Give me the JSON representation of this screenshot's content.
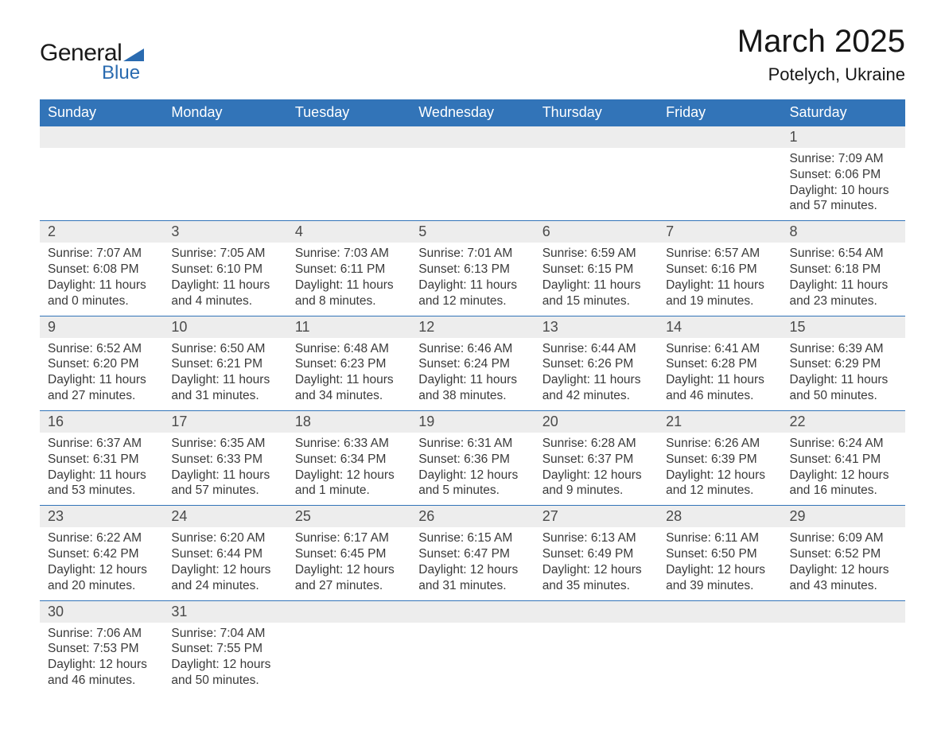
{
  "logo": {
    "word1": "General",
    "word2": "Blue",
    "shape_color": "#2a6bb0",
    "text1_color": "#1a1a1a",
    "text2_color": "#2a6bb0"
  },
  "title": "March 2025",
  "location": "Potelych, Ukraine",
  "header_bg": "#3274b8",
  "header_fg": "#ffffff",
  "daynum_bg": "#ededed",
  "border_color": "#3274b8",
  "text_color": "#3a3a3a",
  "day_headers": [
    "Sunday",
    "Monday",
    "Tuesday",
    "Wednesday",
    "Thursday",
    "Friday",
    "Saturday"
  ],
  "weeks": [
    [
      null,
      null,
      null,
      null,
      null,
      null,
      {
        "n": "1",
        "sunrise": "Sunrise: 7:09 AM",
        "sunset": "Sunset: 6:06 PM",
        "day1": "Daylight: 10 hours",
        "day2": "and 57 minutes."
      }
    ],
    [
      {
        "n": "2",
        "sunrise": "Sunrise: 7:07 AM",
        "sunset": "Sunset: 6:08 PM",
        "day1": "Daylight: 11 hours",
        "day2": "and 0 minutes."
      },
      {
        "n": "3",
        "sunrise": "Sunrise: 7:05 AM",
        "sunset": "Sunset: 6:10 PM",
        "day1": "Daylight: 11 hours",
        "day2": "and 4 minutes."
      },
      {
        "n": "4",
        "sunrise": "Sunrise: 7:03 AM",
        "sunset": "Sunset: 6:11 PM",
        "day1": "Daylight: 11 hours",
        "day2": "and 8 minutes."
      },
      {
        "n": "5",
        "sunrise": "Sunrise: 7:01 AM",
        "sunset": "Sunset: 6:13 PM",
        "day1": "Daylight: 11 hours",
        "day2": "and 12 minutes."
      },
      {
        "n": "6",
        "sunrise": "Sunrise: 6:59 AM",
        "sunset": "Sunset: 6:15 PM",
        "day1": "Daylight: 11 hours",
        "day2": "and 15 minutes."
      },
      {
        "n": "7",
        "sunrise": "Sunrise: 6:57 AM",
        "sunset": "Sunset: 6:16 PM",
        "day1": "Daylight: 11 hours",
        "day2": "and 19 minutes."
      },
      {
        "n": "8",
        "sunrise": "Sunrise: 6:54 AM",
        "sunset": "Sunset: 6:18 PM",
        "day1": "Daylight: 11 hours",
        "day2": "and 23 minutes."
      }
    ],
    [
      {
        "n": "9",
        "sunrise": "Sunrise: 6:52 AM",
        "sunset": "Sunset: 6:20 PM",
        "day1": "Daylight: 11 hours",
        "day2": "and 27 minutes."
      },
      {
        "n": "10",
        "sunrise": "Sunrise: 6:50 AM",
        "sunset": "Sunset: 6:21 PM",
        "day1": "Daylight: 11 hours",
        "day2": "and 31 minutes."
      },
      {
        "n": "11",
        "sunrise": "Sunrise: 6:48 AM",
        "sunset": "Sunset: 6:23 PM",
        "day1": "Daylight: 11 hours",
        "day2": "and 34 minutes."
      },
      {
        "n": "12",
        "sunrise": "Sunrise: 6:46 AM",
        "sunset": "Sunset: 6:24 PM",
        "day1": "Daylight: 11 hours",
        "day2": "and 38 minutes."
      },
      {
        "n": "13",
        "sunrise": "Sunrise: 6:44 AM",
        "sunset": "Sunset: 6:26 PM",
        "day1": "Daylight: 11 hours",
        "day2": "and 42 minutes."
      },
      {
        "n": "14",
        "sunrise": "Sunrise: 6:41 AM",
        "sunset": "Sunset: 6:28 PM",
        "day1": "Daylight: 11 hours",
        "day2": "and 46 minutes."
      },
      {
        "n": "15",
        "sunrise": "Sunrise: 6:39 AM",
        "sunset": "Sunset: 6:29 PM",
        "day1": "Daylight: 11 hours",
        "day2": "and 50 minutes."
      }
    ],
    [
      {
        "n": "16",
        "sunrise": "Sunrise: 6:37 AM",
        "sunset": "Sunset: 6:31 PM",
        "day1": "Daylight: 11 hours",
        "day2": "and 53 minutes."
      },
      {
        "n": "17",
        "sunrise": "Sunrise: 6:35 AM",
        "sunset": "Sunset: 6:33 PM",
        "day1": "Daylight: 11 hours",
        "day2": "and 57 minutes."
      },
      {
        "n": "18",
        "sunrise": "Sunrise: 6:33 AM",
        "sunset": "Sunset: 6:34 PM",
        "day1": "Daylight: 12 hours",
        "day2": "and 1 minute."
      },
      {
        "n": "19",
        "sunrise": "Sunrise: 6:31 AM",
        "sunset": "Sunset: 6:36 PM",
        "day1": "Daylight: 12 hours",
        "day2": "and 5 minutes."
      },
      {
        "n": "20",
        "sunrise": "Sunrise: 6:28 AM",
        "sunset": "Sunset: 6:37 PM",
        "day1": "Daylight: 12 hours",
        "day2": "and 9 minutes."
      },
      {
        "n": "21",
        "sunrise": "Sunrise: 6:26 AM",
        "sunset": "Sunset: 6:39 PM",
        "day1": "Daylight: 12 hours",
        "day2": "and 12 minutes."
      },
      {
        "n": "22",
        "sunrise": "Sunrise: 6:24 AM",
        "sunset": "Sunset: 6:41 PM",
        "day1": "Daylight: 12 hours",
        "day2": "and 16 minutes."
      }
    ],
    [
      {
        "n": "23",
        "sunrise": "Sunrise: 6:22 AM",
        "sunset": "Sunset: 6:42 PM",
        "day1": "Daylight: 12 hours",
        "day2": "and 20 minutes."
      },
      {
        "n": "24",
        "sunrise": "Sunrise: 6:20 AM",
        "sunset": "Sunset: 6:44 PM",
        "day1": "Daylight: 12 hours",
        "day2": "and 24 minutes."
      },
      {
        "n": "25",
        "sunrise": "Sunrise: 6:17 AM",
        "sunset": "Sunset: 6:45 PM",
        "day1": "Daylight: 12 hours",
        "day2": "and 27 minutes."
      },
      {
        "n": "26",
        "sunrise": "Sunrise: 6:15 AM",
        "sunset": "Sunset: 6:47 PM",
        "day1": "Daylight: 12 hours",
        "day2": "and 31 minutes."
      },
      {
        "n": "27",
        "sunrise": "Sunrise: 6:13 AM",
        "sunset": "Sunset: 6:49 PM",
        "day1": "Daylight: 12 hours",
        "day2": "and 35 minutes."
      },
      {
        "n": "28",
        "sunrise": "Sunrise: 6:11 AM",
        "sunset": "Sunset: 6:50 PM",
        "day1": "Daylight: 12 hours",
        "day2": "and 39 minutes."
      },
      {
        "n": "29",
        "sunrise": "Sunrise: 6:09 AM",
        "sunset": "Sunset: 6:52 PM",
        "day1": "Daylight: 12 hours",
        "day2": "and 43 minutes."
      }
    ],
    [
      {
        "n": "30",
        "sunrise": "Sunrise: 7:06 AM",
        "sunset": "Sunset: 7:53 PM",
        "day1": "Daylight: 12 hours",
        "day2": "and 46 minutes."
      },
      {
        "n": "31",
        "sunrise": "Sunrise: 7:04 AM",
        "sunset": "Sunset: 7:55 PM",
        "day1": "Daylight: 12 hours",
        "day2": "and 50 minutes."
      },
      null,
      null,
      null,
      null,
      null
    ]
  ]
}
